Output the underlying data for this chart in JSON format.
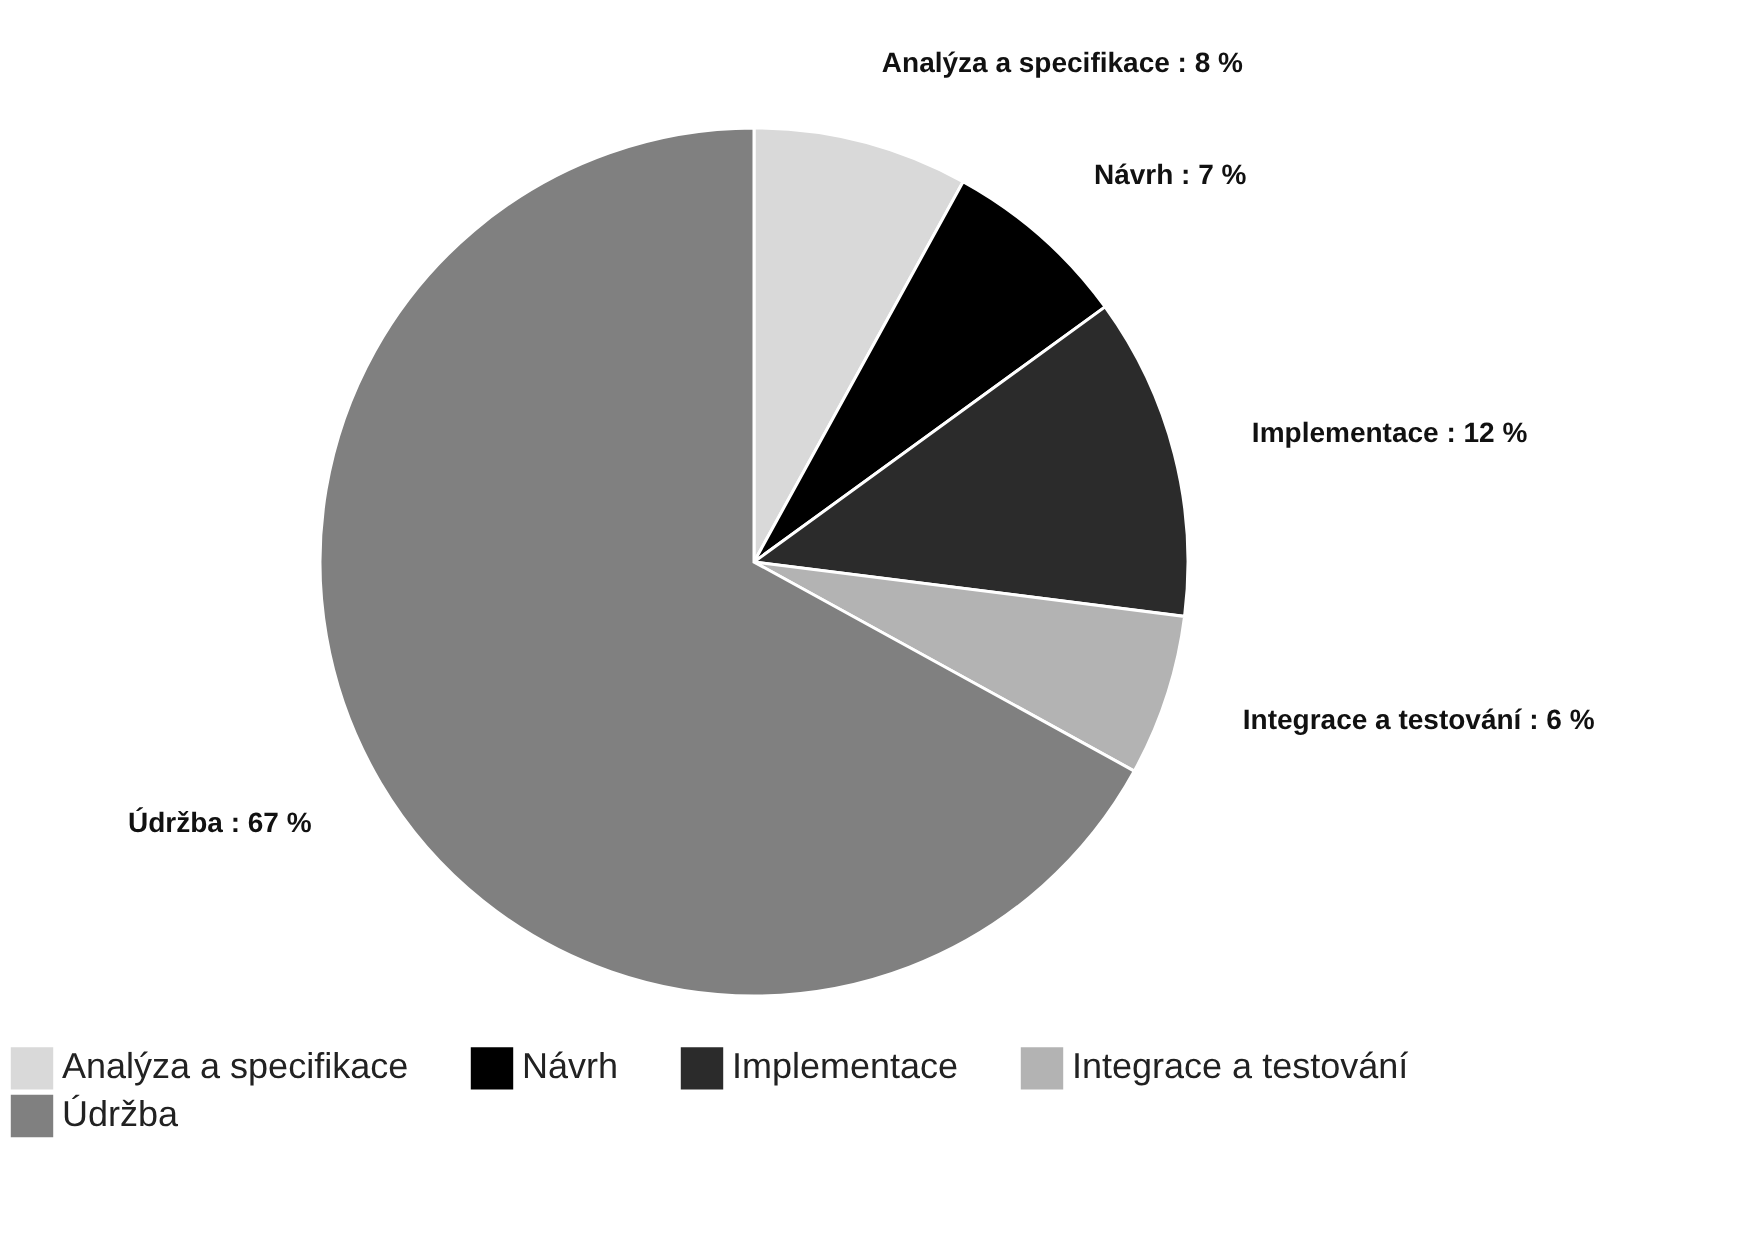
{
  "chart_data": {
    "type": "pie",
    "categories": [
      "Analýza a specifikace",
      "Návrh",
      "Implementace",
      "Integrace a testování",
      "Údržba"
    ],
    "values": [
      8,
      7,
      12,
      6,
      67
    ],
    "colors": [
      "#d9d9d9",
      "#000000",
      "#2b2b2b",
      "#b3b3b3",
      "#808080"
    ],
    "value_labels": [
      "Analýza a specifikace : 8 %",
      "Návrh : 7 %",
      "Implementace : 12 %",
      "Integrace a testování : 6 %",
      "Údržba : 67 %"
    ],
    "legend": "bottom"
  }
}
